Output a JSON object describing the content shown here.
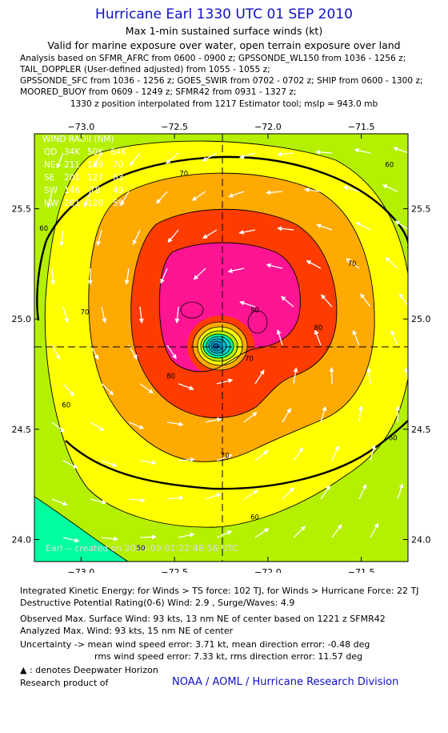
{
  "header": {
    "title": "Hurricane Earl 1330 UTC 01 SEP 2010",
    "subtitle": "Max 1-min sustained surface winds (kt)",
    "validity": "Valid for marine exposure over water, open terrain exposure over land",
    "analysis_lines": [
      "Analysis based on SFMR_AFRC from 0600 - 0900 z; GPSSONDE_WL150 from 1036 - 1256 z;",
      "TAIL_DOPPLER (User-defined adjusted) from 1055 - 1055 z;",
      "GPSSONDE_SFC from 1036 - 1256 z; GOES_SWIR from 0702 - 0702 z; SHIP from 0600 - 1300 z;",
      "MOORED_BUOY from 0609 - 1249 z; SFMR42 from 0931 - 1327 z;"
    ],
    "position_line": "1330 z position interpolated from 1217 Estimator tool; mslp = 943.0 mb"
  },
  "wind_radii": {
    "title": "WIND RADII (NM)",
    "header_row": [
      "QD",
      "34K",
      "50K",
      "64K"
    ],
    "rows": [
      [
        "NE",
        "211",
        "139",
        "70"
      ],
      [
        "SE",
        "201",
        "127",
        "63"
      ],
      [
        "SW",
        "146",
        "78",
        "49"
      ],
      [
        "NW",
        "201",
        "120",
        "59"
      ]
    ]
  },
  "watermark": "Earl -- created on 2010-09-01 22:48:56 UTC",
  "chart_data": {
    "type": "heatmap",
    "title": "Hurricane Earl 1330 UTC 01 SEP 2010",
    "subtitle": "Max 1-min sustained surface winds (kt)",
    "xlabel": "",
    "ylabel": "",
    "x_ticks": [
      -73.0,
      -72.5,
      -72.0,
      -71.5
    ],
    "y_ticks": [
      24.0,
      24.5,
      25.0,
      25.5
    ],
    "x_tick_labels": [
      "−73.0",
      "−72.5",
      "−72.0",
      "−71.5"
    ],
    "y_tick_labels": [
      "24.0",
      "24.5",
      "25.0",
      "25.5"
    ],
    "xlim": [
      -73.25,
      -71.25
    ],
    "ylim": [
      23.9,
      25.84
    ],
    "center": {
      "lon": -72.22,
      "lat": 24.92
    },
    "max_wind_kt": 93,
    "contour_levels_kt": [
      50,
      60,
      70,
      80,
      90
    ],
    "contour_labels": [
      {
        "text": "60",
        "lon": -71.35,
        "lat": 25.69
      },
      {
        "text": "70",
        "lon": -72.45,
        "lat": 25.65
      },
      {
        "text": "70",
        "lon": -71.55,
        "lat": 25.24
      },
      {
        "text": "70",
        "lon": -72.98,
        "lat": 25.02
      },
      {
        "text": "60",
        "lon": -73.2,
        "lat": 25.4
      },
      {
        "text": "80",
        "lon": -72.52,
        "lat": 24.73
      },
      {
        "text": "80",
        "lon": -71.73,
        "lat": 24.95
      },
      {
        "text": "90",
        "lon": -72.07,
        "lat": 25.03
      },
      {
        "text": "70",
        "lon": -72.1,
        "lat": 24.81
      },
      {
        "text": "70",
        "lon": -72.23,
        "lat": 24.37
      },
      {
        "text": "60",
        "lon": -73.08,
        "lat": 24.6
      },
      {
        "text": "60",
        "lon": -71.33,
        "lat": 24.45
      },
      {
        "text": "60",
        "lon": -72.07,
        "lat": 24.09
      },
      {
        "text": "50",
        "lon": -72.68,
        "lat": 23.95
      }
    ],
    "colors": {
      "lt50": "#00ffa0",
      "50-60": "#b4f000",
      "60-70": "#ffff00",
      "70-80": "#ffaa00",
      "80-90": "#ff3c00",
      "90+": "#ff1493",
      "inner_eye": "#00d7d2"
    },
    "wind_speed_label": "kt"
  },
  "footer": {
    "ike": "Integrated Kinetic Energy:  for Winds > TS force: 102 TJ,  for Winds > Hurricane Force: 22 TJ",
    "dpr": "Destructive Potential Rating(0-6)   Wind: 2.9 , Surge/Waves: 4.9",
    "obs_max": "Observed Max. Surface Wind: 93 kts, 13 nm NE of center based on 1221 z SFMR42",
    "ana_max": "Analyzed Max. Wind: 93 kts, 15 nm NE of center",
    "unc1": "Uncertainty -> mean wind speed error: 3.71 kt,   mean direction error:  -0.48 deg",
    "unc2": "rms wind speed error: 7.33 kt,   rms direction error: 11.57 deg",
    "dwh": ": denotes Deepwater Horizon",
    "research": "Research product of",
    "noaa": "NOAA / AOML / Hurricane Research Division"
  }
}
